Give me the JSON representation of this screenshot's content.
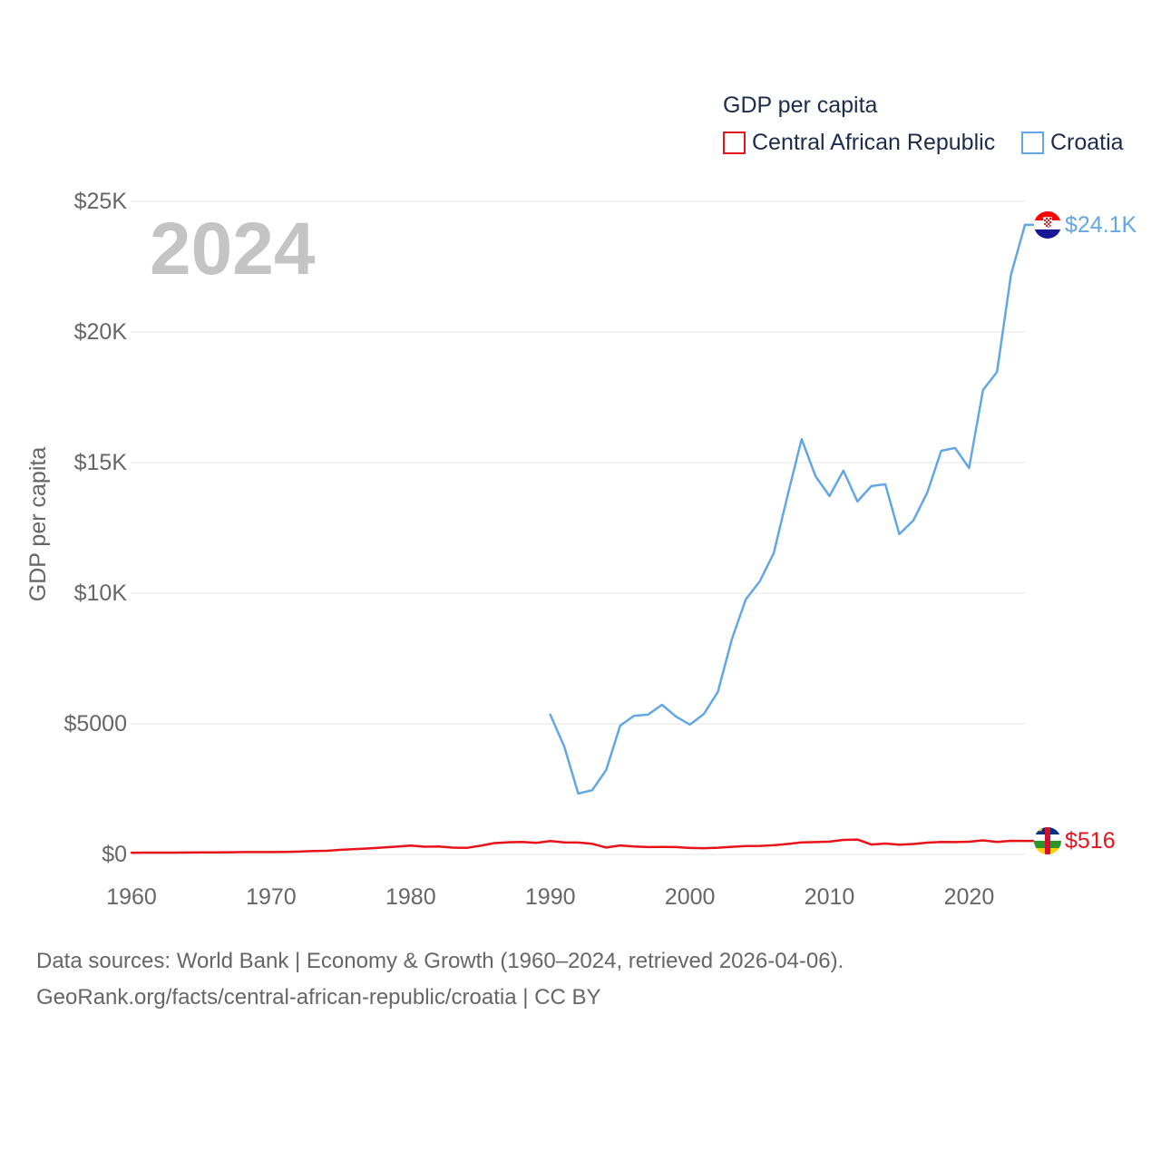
{
  "chart_data": {
    "type": "line",
    "legend_title": "GDP per capita",
    "legend_position": "top-right",
    "ylabel": "GDP per capita",
    "year_label": "2024",
    "grid": true,
    "xlim": [
      1960,
      2024
    ],
    "ylim": [
      0,
      25000
    ],
    "xticks": [
      {
        "value": 1960,
        "label": "1960"
      },
      {
        "value": 1970,
        "label": "1970"
      },
      {
        "value": 1980,
        "label": "1980"
      },
      {
        "value": 1990,
        "label": "1990"
      },
      {
        "value": 2000,
        "label": "2000"
      },
      {
        "value": 2010,
        "label": "2010"
      },
      {
        "value": 2020,
        "label": "2020"
      }
    ],
    "yticks": [
      {
        "value": 0,
        "label": "$0"
      },
      {
        "value": 5000,
        "label": "$5000"
      },
      {
        "value": 10000,
        "label": "$10K"
      },
      {
        "value": 15000,
        "label": "$15K"
      },
      {
        "value": 20000,
        "label": "$20K"
      },
      {
        "value": 25000,
        "label": "$25K"
      }
    ],
    "x": [
      1960,
      1961,
      1962,
      1963,
      1964,
      1965,
      1966,
      1967,
      1968,
      1969,
      1970,
      1971,
      1972,
      1973,
      1974,
      1975,
      1976,
      1977,
      1978,
      1979,
      1980,
      1981,
      1982,
      1983,
      1984,
      1985,
      1986,
      1987,
      1988,
      1989,
      1990,
      1991,
      1992,
      1993,
      1994,
      1995,
      1996,
      1997,
      1998,
      1999,
      2000,
      2001,
      2002,
      2003,
      2004,
      2005,
      2006,
      2007,
      2008,
      2009,
      2010,
      2011,
      2012,
      2013,
      2014,
      2015,
      2016,
      2017,
      2018,
      2019,
      2020,
      2021,
      2022,
      2023,
      2024
    ],
    "series": [
      {
        "name": "Central African Republic",
        "color": "#e8131a",
        "flag_icon": "central-african-republic-flag-icon",
        "end_label": "$516",
        "values": [
          67,
          70,
          68,
          70,
          74,
          78,
          80,
          84,
          92,
          89,
          90,
          96,
          108,
          130,
          140,
          178,
          205,
          230,
          265,
          300,
          340,
          295,
          305,
          262,
          250,
          335,
          435,
          465,
          480,
          445,
          510,
          462,
          455,
          405,
          265,
          345,
          305,
          280,
          285,
          280,
          245,
          240,
          258,
          290,
          318,
          328,
          352,
          400,
          458,
          472,
          489,
          555,
          568,
          380,
          415,
          372,
          398,
          450,
          480,
          472,
          485,
          538,
          480,
          520,
          516
        ]
      },
      {
        "name": "Croatia",
        "color": "#62a7e3",
        "flag_icon": "croatia-flag-icon",
        "end_label": "$24.1K",
        "values": [
          null,
          null,
          null,
          null,
          null,
          null,
          null,
          null,
          null,
          null,
          null,
          null,
          null,
          null,
          null,
          null,
          null,
          null,
          null,
          null,
          null,
          null,
          null,
          null,
          null,
          null,
          null,
          null,
          null,
          null,
          5350,
          4130,
          2330,
          2460,
          3230,
          4930,
          5310,
          5350,
          5730,
          5280,
          4970,
          5380,
          6220,
          8230,
          9760,
          10450,
          11530,
          13750,
          15900,
          14480,
          13720,
          14690,
          13510,
          14100,
          14170,
          12260,
          12780,
          13850,
          15450,
          15560,
          14790,
          17780,
          18470,
          22190,
          24100
        ]
      }
    ]
  },
  "footer": {
    "sources": "Data sources: World Bank | Economy & Growth (1960–2024, retrieved 2026-04-06).",
    "link": "GeoRank.org/facts/central-african-republic/croatia | CC BY"
  }
}
